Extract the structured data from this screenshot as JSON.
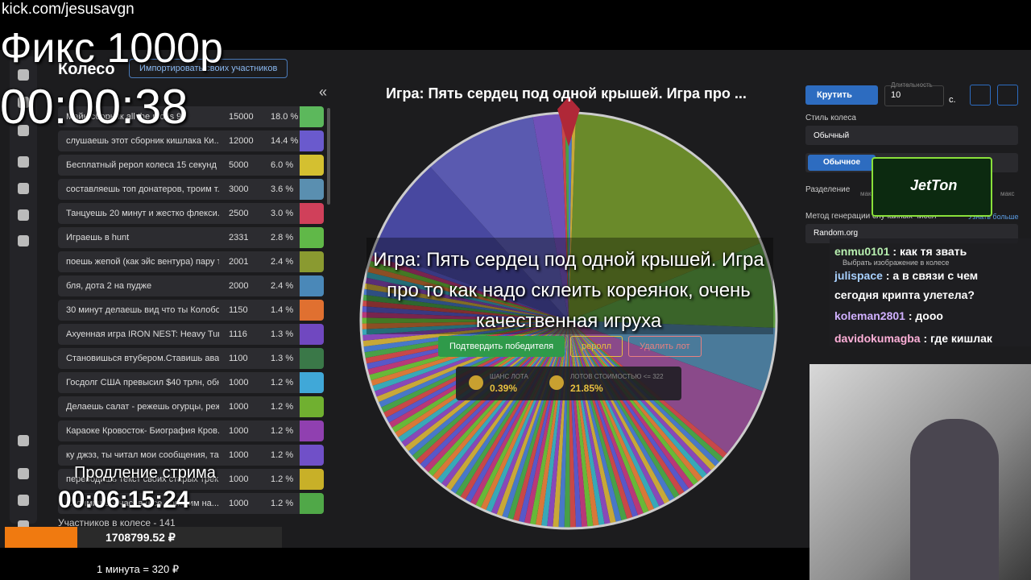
{
  "overlay": {
    "url": "kick.com/jesusavgn",
    "title": "Фикс 1000р",
    "timer": "00:00:38",
    "extension_label": "Продление стрима",
    "extension_timer": "00:06:15:24",
    "total": "1708799.52 ₽",
    "rate": "1 минута = 320 ₽"
  },
  "app": {
    "title": "Колесо",
    "import_button": "Импортировать своих участников",
    "collapse": "«",
    "lots": [
      {
        "name": "Майн сборник all the mods 9",
        "amount": "15000",
        "percent": "18.0 %",
        "color": "#5cb85c"
      },
      {
        "name": "слушаешь этот сборник кишлака Ки...",
        "amount": "12000",
        "percent": "14.4 %",
        "color": "#6a5acd"
      },
      {
        "name": "Бесплатный рерол колеса 15 секунд",
        "amount": "5000",
        "percent": "6.0 %",
        "color": "#d4c030"
      },
      {
        "name": "составляешь топ донатеров, троим т...",
        "amount": "3000",
        "percent": "3.6 %",
        "color": "#5a8fb0"
      },
      {
        "name": "Танцуешь 20 минут и жестко флекси...",
        "amount": "2500",
        "percent": "3.0 %",
        "color": "#d0405a"
      },
      {
        "name": "Играешь в hunt",
        "amount": "2331",
        "percent": "2.8 %",
        "color": "#60b848"
      },
      {
        "name": "поешь жепой (как эйс вентура) пару т...",
        "amount": "2001",
        "percent": "2.4 %",
        "color": "#8a9a30"
      },
      {
        "name": "бля, дота 2 на пудже",
        "amount": "2000",
        "percent": "2.4 %",
        "color": "#4a88b8"
      },
      {
        "name": "30 минут делаешь вид что ты Колобок...",
        "amount": "1150",
        "percent": "1.4 %",
        "color": "#e07030"
      },
      {
        "name": "Ахуенная игра IRON NEST: Heavy Turre...",
        "amount": "1116",
        "percent": "1.3 %",
        "color": "#7048c0"
      },
      {
        "name": "Становишься втубером.Ставишь ават...",
        "amount": "1100",
        "percent": "1.3 %",
        "color": "#3a7848"
      },
      {
        "name": "Госдолг США превысил $40 трлн, обн...",
        "amount": "1000",
        "percent": "1.2 %",
        "color": "#40a8d8"
      },
      {
        "name": "Делаешь салат - режешь огурцы, реж...",
        "amount": "1000",
        "percent": "1.2 %",
        "color": "#70b030"
      },
      {
        "name": "Караоке Кровосток- Биография Кров...",
        "amount": "1000",
        "percent": "1.2 %",
        "color": "#9040b0"
      },
      {
        "name": "ку джэз, ты читал мои сообщения, та...",
        "amount": "1000",
        "percent": "1.2 %",
        "color": "#7050c8"
      },
      {
        "name": "переводишь текст своих старых трек...",
        "amount": "1000",
        "percent": "1.2 %",
        "color": "#c8b028"
      },
      {
        "name": "Стримишь 9 часов (все донатим на...",
        "amount": "1000",
        "percent": "1.2 %",
        "color": "#50a848"
      }
    ],
    "participants": "Участников в колесе - 141",
    "game_title": "Игра: Пять сердец под одной крышей. Игра про ...",
    "winner_text": "Игра: Пять сердец под одной крышей. Игра про то как надо склеить кореянок, очень качественная игруха",
    "buttons": [
      "Подтвердить победителя",
      "реролл",
      "Удалить лот"
    ],
    "stats": [
      {
        "label": "ШАНС ЛОТА",
        "value": "0.39%"
      },
      {
        "label": "ЛОТОВ СТОИМОСТЬЮ <= 322",
        "value": "21.85%"
      }
    ],
    "controls": {
      "spin": "Крутить",
      "duration_label": "Длительность",
      "duration": "10",
      "seconds": "с.",
      "style_label": "Стиль колеса",
      "style": "Обычный",
      "mode": "Обычное",
      "split_label": "Разделение",
      "min": "мак",
      "max": "макс",
      "rng_label": "Метод генерации случайных чисел",
      "learn_more": "Узнать больше",
      "rng": "Random.org",
      "image": "Выбрать изображение в колесе"
    }
  },
  "sponsor": "JetTon",
  "chat": [
    {
      "user": "enmu0101",
      "text": "как тя звать",
      "color": "#b8f0b0"
    },
    {
      "user": "julispace",
      "text": "а в связи с чем сегодня крипта улетела?",
      "color": "#a8d0ff"
    },
    {
      "user": "koleman2801",
      "text": "дооо",
      "color": "#d0b0ff"
    },
    {
      "user": "davidokumagba",
      "text": "где кишлак",
      "color": "#ffb0d8"
    }
  ]
}
